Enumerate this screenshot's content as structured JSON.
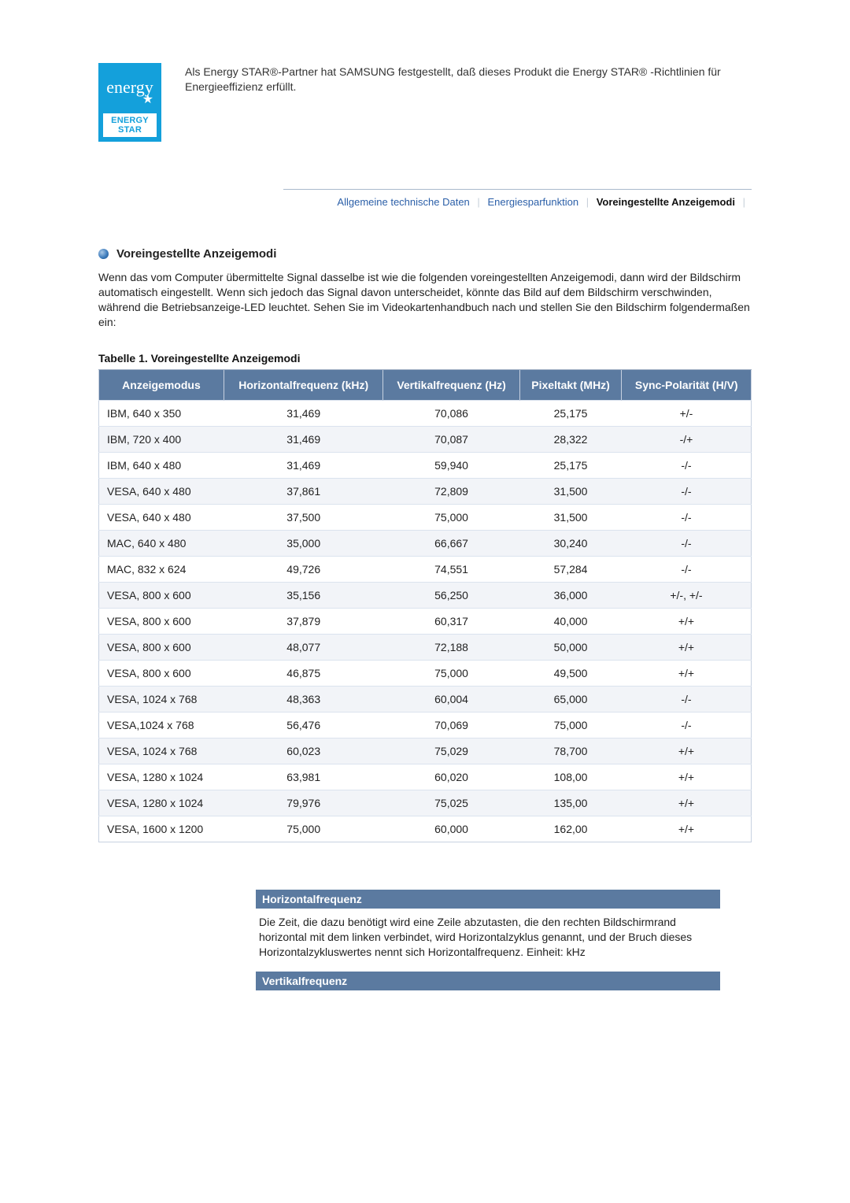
{
  "energy_star": {
    "text": "Als Energy STAR®-Partner hat SAMSUNG festgestellt, daß dieses Produkt die Energy STAR® -Richtlinien für Energieeffizienz erfüllt.",
    "logo_script": "energy",
    "logo_bar": "ENERGY STAR"
  },
  "tabs": {
    "item1": "Allgemeine technische Daten",
    "item2": "Energiesparfunktion",
    "item3": "Voreingestellte Anzeigemodi"
  },
  "section": {
    "title": "Voreingestellte Anzeigemodi",
    "intro": "Wenn das vom Computer übermittelte Signal dasselbe ist wie die folgenden voreingestellten Anzeigemodi, dann wird der Bildschirm automatisch eingestellt. Wenn sich jedoch das Signal davon unterscheidet, könnte das Bild auf dem Bildschirm verschwinden, während die Betriebsanzeige-LED leuchtet. Sehen Sie im Videokartenhandbuch nach und stellen Sie den Bildschirm folgendermaßen ein:"
  },
  "table": {
    "caption": "Tabelle 1. Voreingestellte Anzeigemodi",
    "columns": {
      "c0": "Anzeigemodus",
      "c1": "Horizontalfrequenz (kHz)",
      "c2": "Vertikalfrequenz (Hz)",
      "c3": "Pixeltakt (MHz)",
      "c4": "Sync-Polarität (H/V)"
    },
    "header_bg": "#5b7aa0",
    "header_fg": "#ffffff",
    "row_alt_bg": "#f2f4f8",
    "border_color": "#c7d1e0",
    "rows": [
      {
        "c0": "IBM, 640 x 350",
        "c1": "31,469",
        "c2": "70,086",
        "c3": "25,175",
        "c4": "+/-"
      },
      {
        "c0": "IBM, 720 x 400",
        "c1": "31,469",
        "c2": "70,087",
        "c3": "28,322",
        "c4": "-/+"
      },
      {
        "c0": "IBM, 640 x 480",
        "c1": "31,469",
        "c2": "59,940",
        "c3": "25,175",
        "c4": "-/-"
      },
      {
        "c0": "VESA, 640 x 480",
        "c1": "37,861",
        "c2": "72,809",
        "c3": "31,500",
        "c4": "-/-"
      },
      {
        "c0": "VESA, 640 x 480",
        "c1": "37,500",
        "c2": "75,000",
        "c3": "31,500",
        "c4": "-/-"
      },
      {
        "c0": "MAC, 640 x 480",
        "c1": "35,000",
        "c2": "66,667",
        "c3": "30,240",
        "c4": "-/-"
      },
      {
        "c0": "MAC, 832 x 624",
        "c1": "49,726",
        "c2": "74,551",
        "c3": "57,284",
        "c4": "-/-"
      },
      {
        "c0": "VESA, 800 x 600",
        "c1": "35,156",
        "c2": "56,250",
        "c3": "36,000",
        "c4": "+/-, +/-"
      },
      {
        "c0": "VESA, 800 x 600",
        "c1": "37,879",
        "c2": "60,317",
        "c3": "40,000",
        "c4": "+/+"
      },
      {
        "c0": "VESA, 800 x 600",
        "c1": "48,077",
        "c2": "72,188",
        "c3": "50,000",
        "c4": "+/+"
      },
      {
        "c0": "VESA, 800 x 600",
        "c1": "46,875",
        "c2": "75,000",
        "c3": "49,500",
        "c4": "+/+"
      },
      {
        "c0": "VESA, 1024 x 768",
        "c1": "48,363",
        "c2": "60,004",
        "c3": "65,000",
        "c4": "-/-"
      },
      {
        "c0": "VESA,1024 x 768",
        "c1": "56,476",
        "c2": "70,069",
        "c3": "75,000",
        "c4": "-/-"
      },
      {
        "c0": "VESA, 1024 x 768",
        "c1": "60,023",
        "c2": "75,029",
        "c3": "78,700",
        "c4": "+/+"
      },
      {
        "c0": "VESA, 1280 x 1024",
        "c1": "63,981",
        "c2": "60,020",
        "c3": "108,00",
        "c4": "+/+"
      },
      {
        "c0": "VESA, 1280 x 1024",
        "c1": "79,976",
        "c2": "75,025",
        "c3": "135,00",
        "c4": "+/+"
      },
      {
        "c0": "VESA, 1600 x 1200",
        "c1": "75,000",
        "c2": "60,000",
        "c3": "162,00",
        "c4": "+/+"
      }
    ]
  },
  "defs": {
    "d0": {
      "title": "Horizontalfrequenz",
      "body": "Die Zeit, die dazu benötigt wird eine Zeile abzutasten, die den rechten Bildschirmrand horizontal mit dem linken verbindet, wird Horizontalzyklus genannt, und der Bruch dieses Horizontalzykluswertes nennt sich Horizontalfrequenz. Einheit: kHz"
    },
    "d1": {
      "title": "Vertikalfrequenz"
    }
  }
}
